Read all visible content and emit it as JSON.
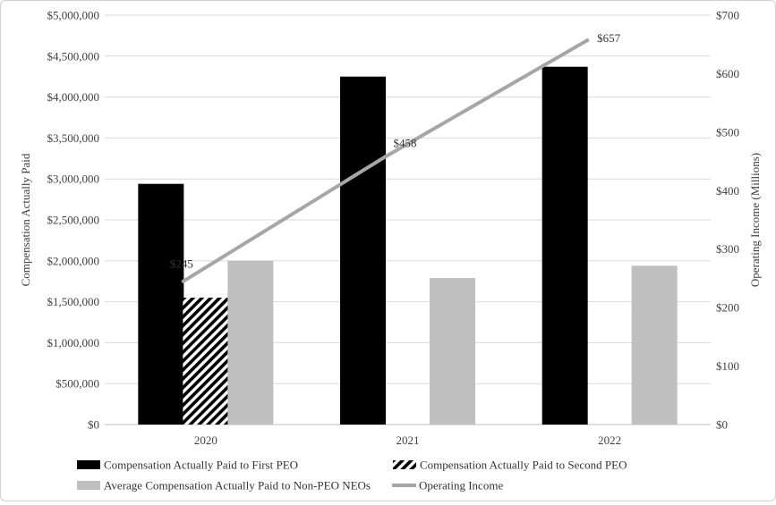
{
  "chart_data": {
    "type": "bar",
    "categories": [
      "2020",
      "2021",
      "2022"
    ],
    "series": [
      {
        "name": "Compensation Actually Paid to First PEO",
        "values": [
          2940000,
          4250000,
          4370000
        ],
        "color": "#000000",
        "pattern": "solid",
        "axis": "left"
      },
      {
        "name": "Compensation Actually Paid to Second PEO",
        "values": [
          1550000,
          null,
          null
        ],
        "color": "#000000",
        "pattern": "hatched",
        "axis": "left"
      },
      {
        "name": "Average Compensation Actually Paid to Non-PEO NEOs",
        "values": [
          2000000,
          1790000,
          1940000
        ],
        "color": "#bfbfbf",
        "pattern": "solid",
        "axis": "left"
      }
    ],
    "line_series": {
      "name": "Operating Income",
      "type": "line",
      "axis": "right",
      "values": [
        245,
        458,
        657
      ],
      "labels": [
        "$245",
        "$458",
        "$657"
      ],
      "color": "#a6a6a6"
    },
    "ylabel": "Compensation Actually Paid",
    "y2label": "Operating Income (Millions)",
    "ylim": [
      0,
      5000000
    ],
    "y2lim": [
      0,
      700
    ],
    "y_ticks": [
      "$0",
      "$500,000",
      "$1,000,000",
      "$1,500,000",
      "$2,000,000",
      "$2,500,000",
      "$3,000,000",
      "$3,500,000",
      "$4,000,000",
      "$4,500,000",
      "$5,000,000"
    ],
    "y2_ticks": [
      "$0",
      "$100",
      "$200",
      "$300",
      "$400",
      "$500",
      "$600",
      "$700"
    ],
    "grid": true,
    "legend_position": "bottom"
  }
}
